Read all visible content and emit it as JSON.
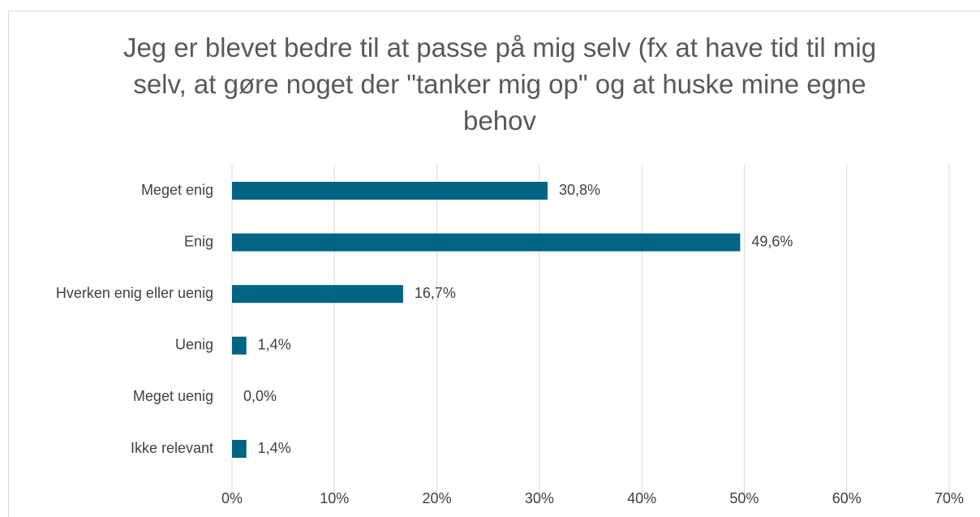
{
  "chart_data": {
    "type": "bar",
    "orientation": "horizontal",
    "title": "Jeg er blevet bedre til at passe på mig selv (fx at have tid til mig selv, at gøre noget der \"tanker mig op\" og at huske mine egne behov",
    "categories": [
      "Meget enig",
      "Enig",
      "Hverken enig eller uenig",
      "Uenig",
      "Meget uenig",
      "Ikke relevant"
    ],
    "values": [
      30.8,
      49.6,
      16.7,
      1.4,
      0.0,
      1.4
    ],
    "value_labels": [
      "30,8%",
      "49,6%",
      "16,7%",
      "1,4%",
      "0,0%",
      "1,4%"
    ],
    "color": "#006482",
    "xlim": [
      0,
      70
    ],
    "xticks": [
      {
        "value": 0,
        "label": "0%"
      },
      {
        "value": 10,
        "label": "10%"
      },
      {
        "value": 20,
        "label": "20%"
      },
      {
        "value": 30,
        "label": "30%"
      },
      {
        "value": 40,
        "label": "40%"
      },
      {
        "value": 50,
        "label": "50%"
      },
      {
        "value": 60,
        "label": "60%"
      },
      {
        "value": 70,
        "label": "70%"
      }
    ],
    "grid": true
  }
}
